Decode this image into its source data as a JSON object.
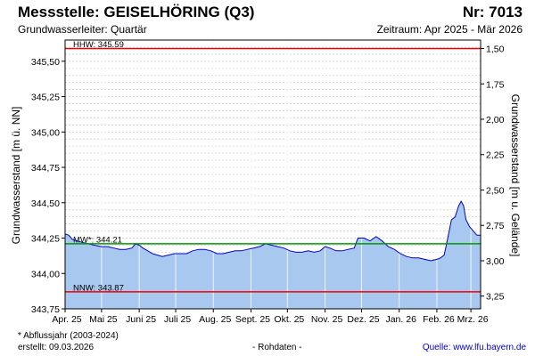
{
  "header": {
    "title": "Messstelle: GEISELHÖRING (Q3)",
    "number": "Nr: 7013",
    "subtitle": "Grundwasserleiter: Quartär",
    "period": "Zeitraum: Apr 2025 - Mär 2026"
  },
  "footer": {
    "footnote": "* Abflussjahr (2003-2024)",
    "created": "erstellt:  09.03.2026",
    "raw_data": "- Rohdaten -",
    "source": "Quelle:  www.lfu.bayern.de"
  },
  "colors": {
    "fill": "#a8c8f0",
    "line": "#0000cc",
    "hhw": "#ee0000",
    "nnw": "#ee0000",
    "mw": "#009900",
    "grid": "#d0d0d0"
  },
  "chart_data": {
    "type": "area",
    "ylabel": "Grundwasserstand [m ü. NN]",
    "ylabel_right": "Grundwasserstand [m u. Gelände]",
    "ylim": [
      343.75,
      345.65
    ],
    "y_ticks": [
      "343,75",
      "344,00",
      "344,25",
      "344,50",
      "344,75",
      "345,00",
      "345,25",
      "345,50"
    ],
    "y_tick_values": [
      343.75,
      344.0,
      344.25,
      344.5,
      344.75,
      345.0,
      345.25,
      345.5
    ],
    "right_ticks": [
      "1,50",
      "1,75",
      "2,00",
      "2,25",
      "2,50",
      "2,75",
      "3,00",
      "3,25"
    ],
    "right_tick_depths": [
      1.5,
      1.75,
      2.0,
      2.25,
      2.5,
      2.75,
      3.0,
      3.25
    ],
    "ground_level": 347.09,
    "xlim": [
      "2025-04-01",
      "2026-03-09"
    ],
    "x_ticks": [
      "Apr. 25",
      "Mai 25",
      "Juni 25",
      "Juli 25",
      "Aug. 25",
      "Sept. 25",
      "Okt. 25",
      "Nov. 25",
      "Dez. 25",
      "Jan. 26",
      "Feb. 26",
      "Mrz. 26"
    ],
    "x_tick_dates": [
      "2025-04-01",
      "2025-05-01",
      "2025-06-01",
      "2025-07-01",
      "2025-08-01",
      "2025-09-01",
      "2025-10-01",
      "2025-11-01",
      "2025-12-01",
      "2026-01-01",
      "2026-02-01",
      "2026-03-01"
    ],
    "grid": true,
    "reference_lines": [
      {
        "label": "HHW: 345.59",
        "value": 345.59
      },
      {
        "label": "MW*: 344.21",
        "value": 344.21
      },
      {
        "label": "NNW: 343.87",
        "value": 343.87
      }
    ],
    "series": [
      {
        "dates": [
          "2025-04-01",
          "2025-04-04",
          "2025-04-07",
          "2025-04-11",
          "2025-04-15",
          "2025-04-20",
          "2025-04-25",
          "2025-05-01",
          "2025-05-06",
          "2025-05-11",
          "2025-05-16",
          "2025-05-21",
          "2025-05-26",
          "2025-05-29",
          "2025-06-01",
          "2025-06-04",
          "2025-06-08",
          "2025-06-12",
          "2025-06-16",
          "2025-06-20",
          "2025-06-25",
          "2025-06-30",
          "2025-07-05",
          "2025-07-10",
          "2025-07-15",
          "2025-07-20",
          "2025-07-25",
          "2025-07-30",
          "2025-08-04",
          "2025-08-09",
          "2025-08-14",
          "2025-08-19",
          "2025-08-24",
          "2025-08-29",
          "2025-09-03",
          "2025-09-08",
          "2025-09-13",
          "2025-09-18",
          "2025-09-23",
          "2025-09-28",
          "2025-10-03",
          "2025-10-08",
          "2025-10-13",
          "2025-10-18",
          "2025-10-23",
          "2025-10-28",
          "2025-11-01",
          "2025-11-05",
          "2025-11-10",
          "2025-11-15",
          "2025-11-20",
          "2025-11-25",
          "2025-11-28",
          "2025-12-03",
          "2025-12-08",
          "2025-12-13",
          "2025-12-18",
          "2025-12-23",
          "2025-12-28",
          "2026-01-02",
          "2026-01-07",
          "2026-01-12",
          "2026-01-17",
          "2026-01-22",
          "2026-01-27",
          "2026-02-01",
          "2026-02-04",
          "2026-02-07",
          "2026-02-10",
          "2026-02-13",
          "2026-02-16",
          "2026-02-19",
          "2026-02-21",
          "2026-02-23",
          "2026-02-25",
          "2026-02-28",
          "2026-03-03",
          "2026-03-06",
          "2026-03-09"
        ],
        "values": [
          344.28,
          344.27,
          344.24,
          344.23,
          344.22,
          344.21,
          344.2,
          344.19,
          344.19,
          344.18,
          344.17,
          344.17,
          344.18,
          344.21,
          344.2,
          344.18,
          344.16,
          344.14,
          344.13,
          344.12,
          344.13,
          344.14,
          344.14,
          344.14,
          344.16,
          344.17,
          344.17,
          344.16,
          344.14,
          344.14,
          344.15,
          344.16,
          344.16,
          344.17,
          344.18,
          344.19,
          344.21,
          344.2,
          344.19,
          344.18,
          344.16,
          344.15,
          344.15,
          344.16,
          344.15,
          344.16,
          344.19,
          344.18,
          344.16,
          344.16,
          344.17,
          344.18,
          344.25,
          344.25,
          344.23,
          344.26,
          344.23,
          344.19,
          344.17,
          344.14,
          344.12,
          344.11,
          344.11,
          344.1,
          344.09,
          344.1,
          344.11,
          344.13,
          344.25,
          344.38,
          344.4,
          344.48,
          344.51,
          344.48,
          344.38,
          344.33,
          344.3,
          344.27,
          344.27
        ]
      }
    ]
  }
}
